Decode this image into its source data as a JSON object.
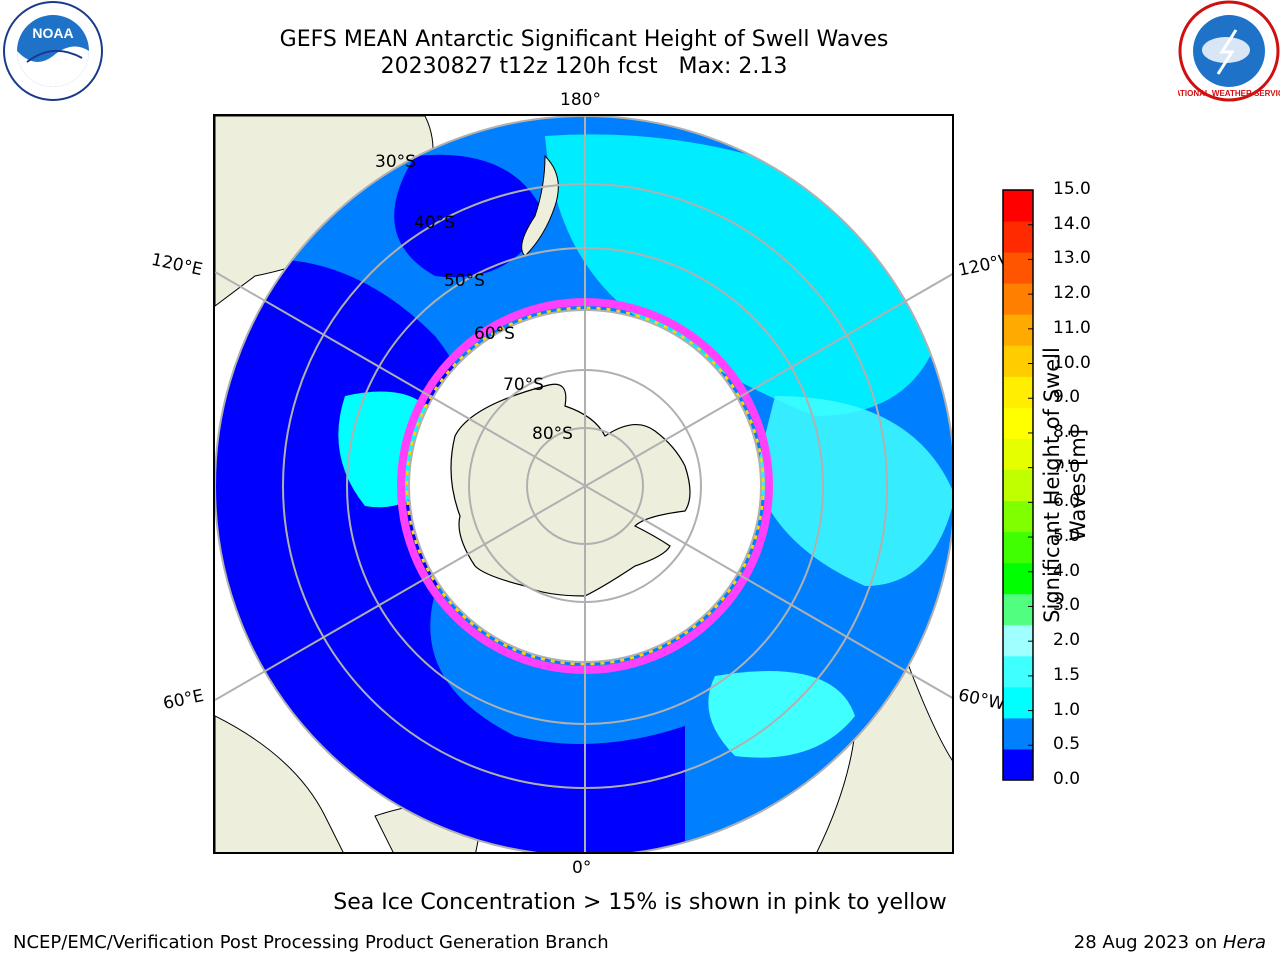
{
  "header": {
    "title_line1": "GEFS MEAN Antarctic Significant Height of Swell Waves",
    "title_line2": "20230827 t12z 120h fcst   Max: 2.13"
  },
  "map": {
    "projection": "south-polar-stereographic",
    "meridian_labels": {
      "top": "180°",
      "bottom": "0°",
      "left_upper": "120°E",
      "left_lower": "60°E",
      "right_upper": "120°W",
      "right_lower": "60°W"
    },
    "latitude_labels": [
      "30°S",
      "40°S",
      "50°S",
      "60°S",
      "70°S",
      "80°S"
    ],
    "colors": {
      "land": "#eeeedd",
      "grid": "#b0b0b0",
      "ocean_low": "#0000ff",
      "ocean_mid": "#0080ff",
      "swell_1_1_5": "#00ffff"
    }
  },
  "colorbar": {
    "label": "Significant Height of Swell\nWaves [m]",
    "ticks": [
      "15.0",
      "14.0",
      "13.0",
      "12.0",
      "11.0",
      "10.0",
      "9.0",
      "8.0",
      "7.0",
      "6.0",
      "5.0",
      "4.0",
      "3.0",
      "2.0",
      "1.5",
      "1.0",
      "0.5",
      "0.0"
    ],
    "colors": [
      "#0000ff",
      "#0080ff",
      "#00ffff",
      "#40ffff",
      "#a0ffff",
      "#50ff80",
      "#00ff00",
      "#40ff00",
      "#80ff00",
      "#c0ff00",
      "#e6ff00",
      "#ffff00",
      "#ffee00",
      "#ffcc00",
      "#ffaa00",
      "#ff8000",
      "#ff5500",
      "#ff2a00",
      "#ff0000"
    ]
  },
  "caption": "Sea Ice Concentration > 15% is shown in pink to yellow",
  "footer": {
    "left": "NCEP/EMC/Verification Post Processing Product Generation Branch",
    "right_prefix": "28 Aug 2023 on ",
    "right_machine": "Hera"
  },
  "logos": {
    "left": "NOAA",
    "right_text": "NATIONAL WEATHER SERVICE"
  }
}
